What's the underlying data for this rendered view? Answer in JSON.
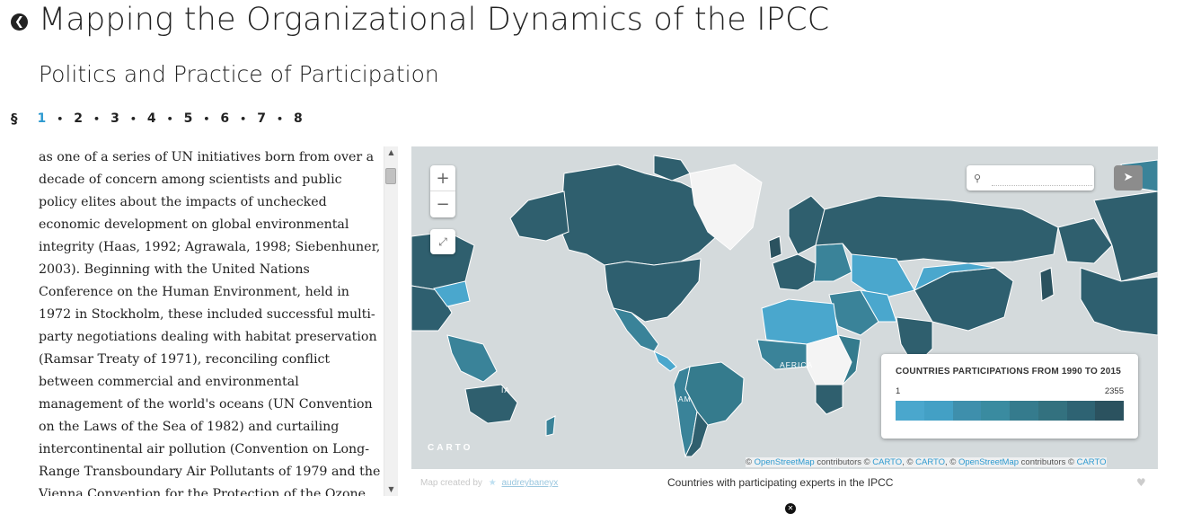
{
  "header": {
    "title": "Mapping the Organizational Dynamics of the IPCC",
    "subtitle": "Politics and Practice of Participation",
    "back_icon": "arrow-left-circle-icon"
  },
  "section_nav": {
    "symbol": "§",
    "pages": [
      "1",
      "2",
      "3",
      "4",
      "5",
      "6",
      "7",
      "8"
    ],
    "active": "1",
    "separator": "•"
  },
  "body_text": "as one of a series of UN initiatives born from over a decade of concern among scientists and public policy elites about the impacts of unchecked economic development on global environmental integrity (Haas, 1992; Agrawala, 1998; Siebenhuner, 2003). Beginning with the United Nations Conference on the Human Environment, held in 1972 in Stockholm, these included successful multi-party negotiations dealing with habitat preservation (Ramsar Treaty of 1971), reconciling conflict between commercial and environmental management of the world's oceans (UN Convention on the Laws of the Sea of 1982) and curtailing intercontinental air pollution (Convention on Long-Range Transboundary Air Pollutants of 1979 and the Vienna Convention for the Protection of the Ozone",
  "map": {
    "zoom_in": "+",
    "zoom_out": "−",
    "search_placeholder": "",
    "logo": "CARTO",
    "labels": {
      "africa": "AFRICA",
      "america_partial": "AM",
      "asia_partial": "IA"
    },
    "attribution": {
      "prefix": "© ",
      "osm": "OpenStreetMap",
      "contributors": " contributors © ",
      "carto": "CARTO",
      "sep": ", © ",
      "carto2": "CARTO",
      "sep2": ", © ",
      "osm2": "OpenStreetMap",
      "contributors2": " contributors © ",
      "carto3": "CARTO"
    },
    "legend": {
      "title": "COUNTRIES PARTICIPATIONS FROM 1990 TO 2015",
      "min": "1",
      "max": "2355",
      "colors": [
        "#4aa7cd",
        "#43a0c5",
        "#3e8fac",
        "#3a8ba0",
        "#357b8d",
        "#33717f",
        "#2e6373",
        "#2b525f"
      ]
    },
    "colors": {
      "ocean": "#d4dadc",
      "dark_country": "#2f5f6e",
      "mid_country": "#3a8399",
      "light_country": "#4aa7cd",
      "no_data": "#f4f4f4"
    }
  },
  "footer": {
    "credit_prefix": "Map created by",
    "author": "audreybaneyx",
    "caption": "Countries with participating experts in the IPCC"
  }
}
